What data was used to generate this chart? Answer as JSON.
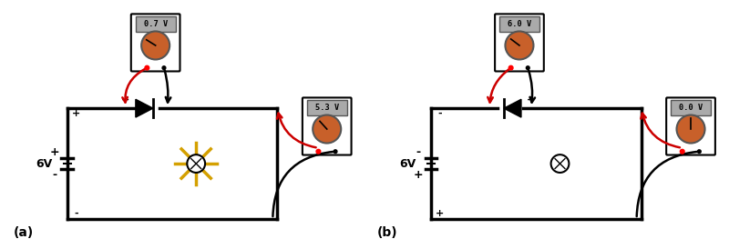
{
  "bg_color": "#ffffff",
  "label_a": "(a)",
  "label_b": "(b)",
  "meter_a_top_reading": "0.7 V",
  "meter_a_bot_reading": "5.3 V",
  "meter_b_top_reading": "6.0 V",
  "meter_b_bot_reading": "0.0 V",
  "battery_voltage": "6V",
  "circuit_color": "#000000",
  "ray_color": "#d4a000",
  "meter_display_bg": "#aaaaaa",
  "dial_color": "#c8602a",
  "red_wire_color": "#cc0000",
  "lw_circuit": 2.5
}
